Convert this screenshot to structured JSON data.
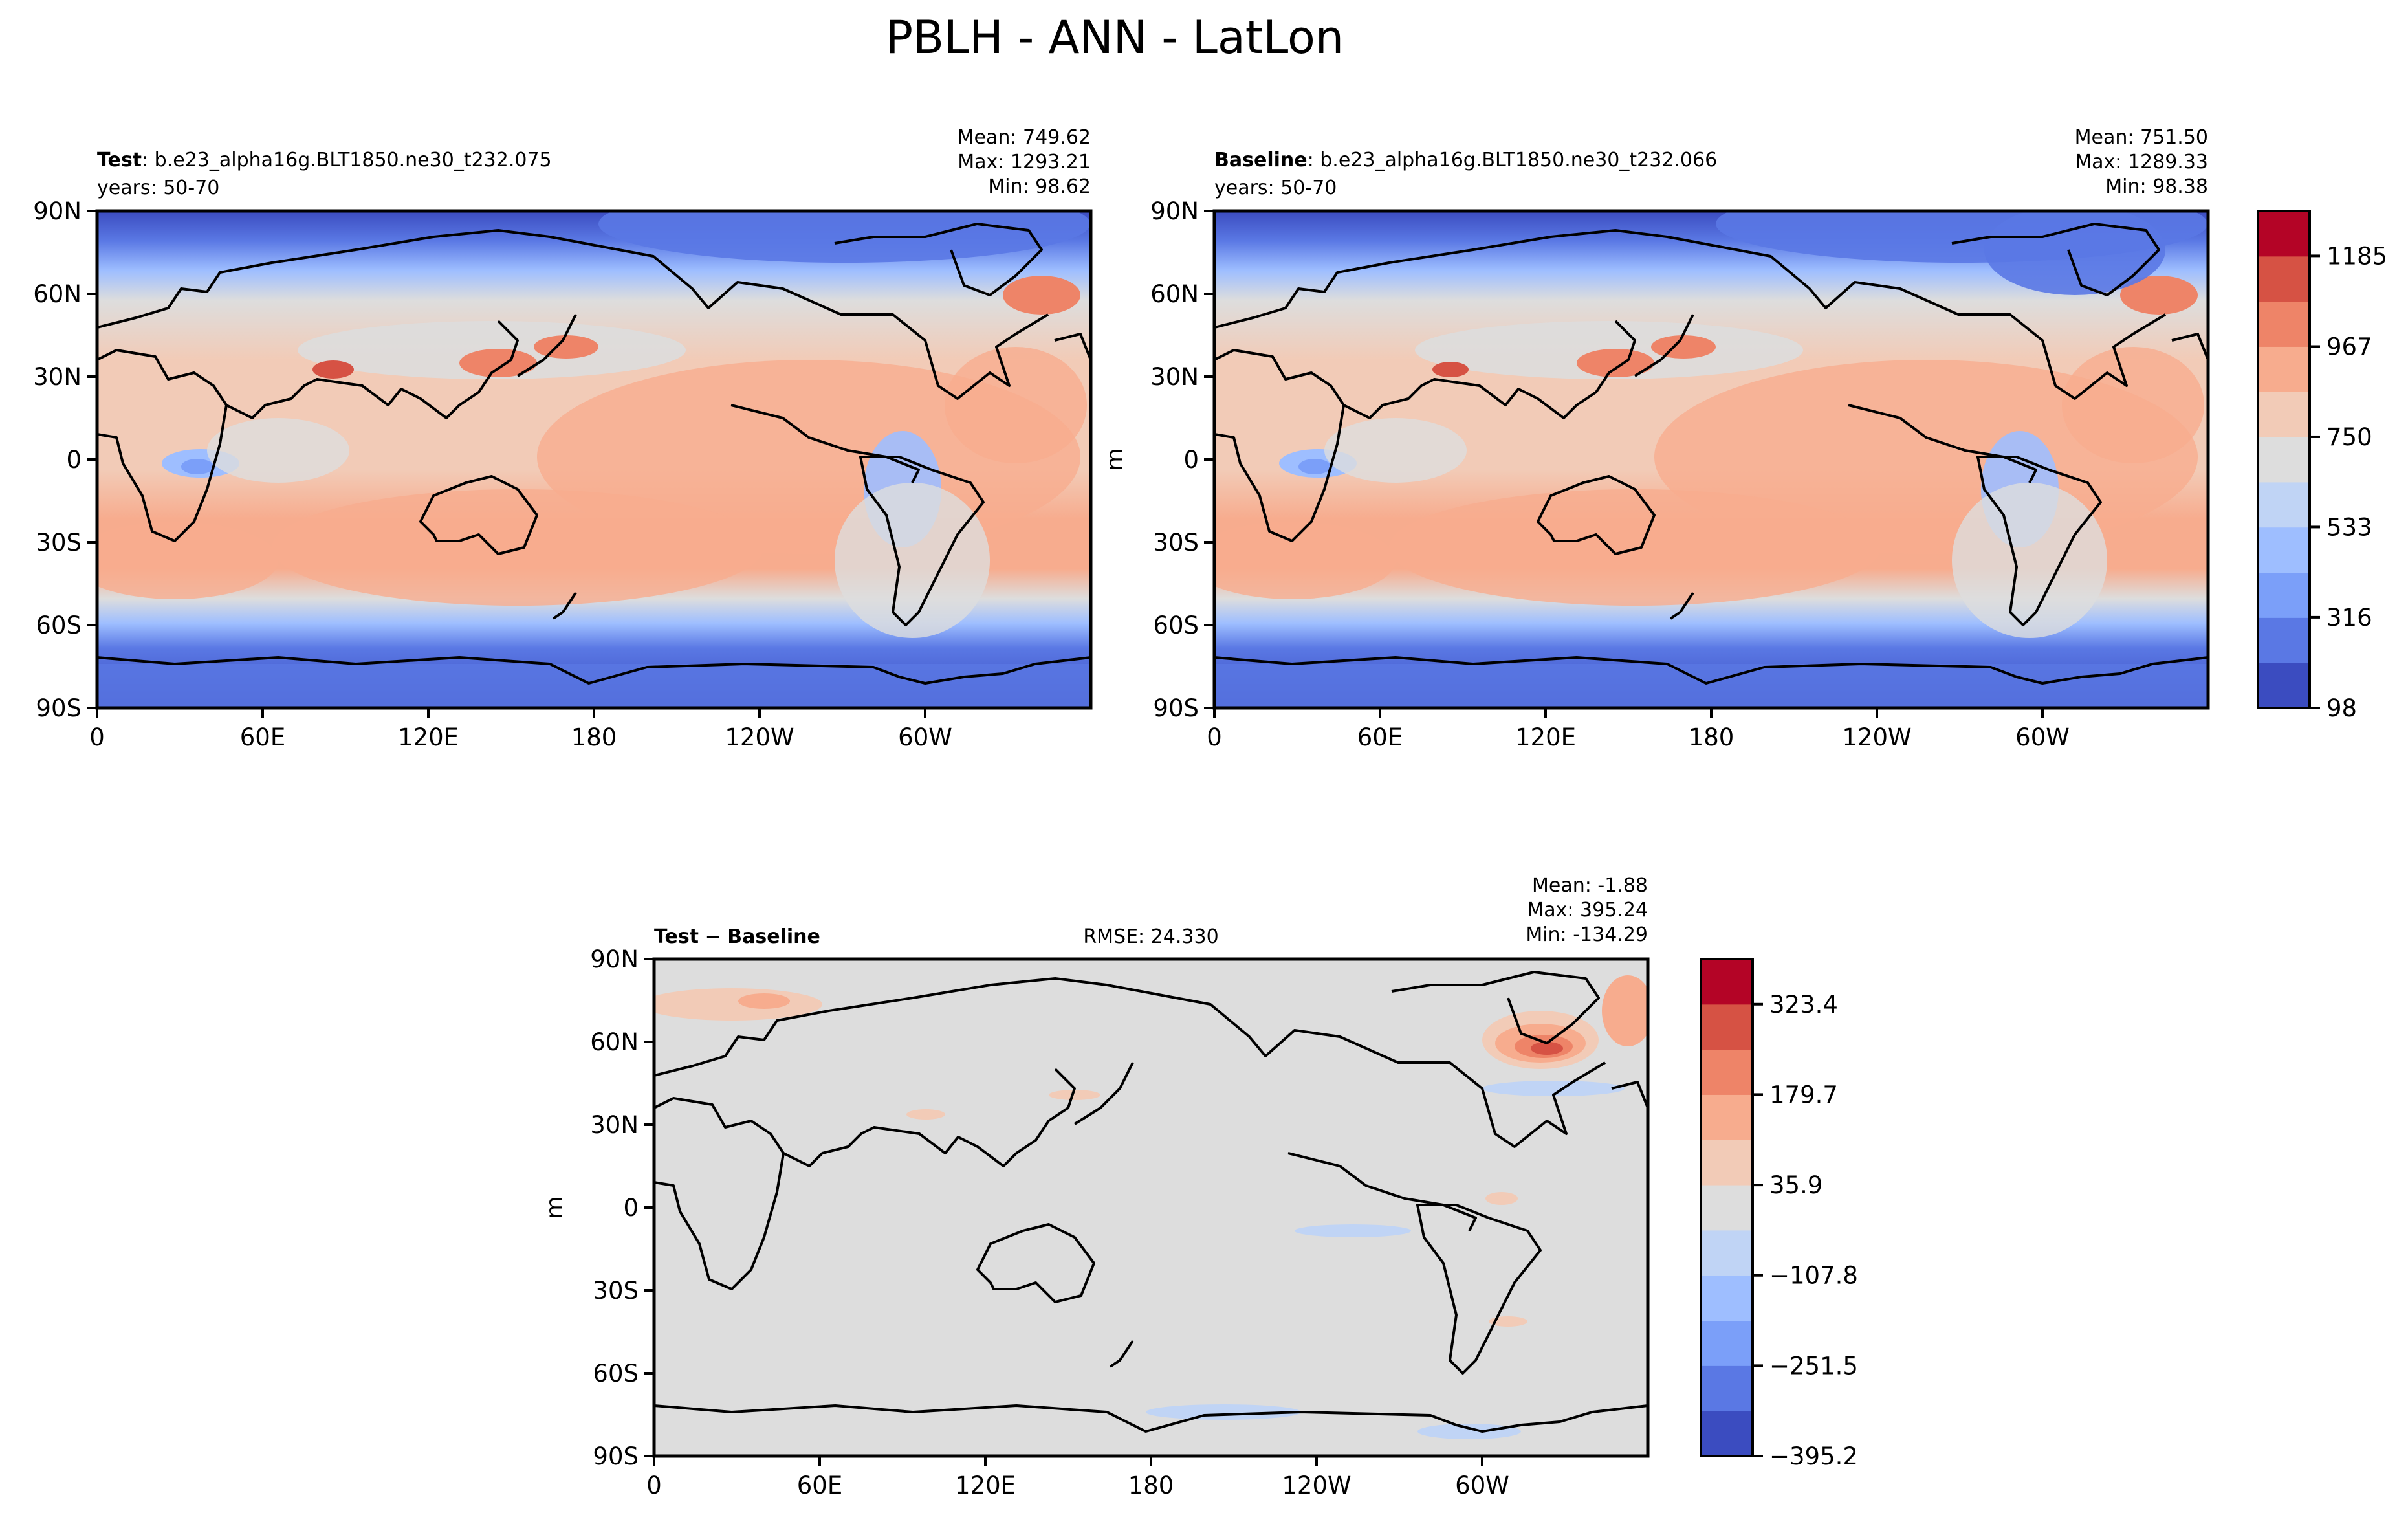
{
  "figure": {
    "title": "PBLH - ANN - LatLon"
  },
  "chart_data": [
    {
      "type": "heatmap",
      "panel": "test",
      "label_bold": "Test",
      "label_rest": ": b.e23_alpha16g.BLT1850.ne30_t232.075",
      "years": "years: 50-70",
      "stats": [
        "Mean: 749.62",
        "Max: 1293.21",
        "Min: 98.62"
      ],
      "xlabel": "",
      "ylabel": "",
      "x_ticks": [
        "0",
        "60E",
        "120E",
        "180",
        "120W",
        "60W"
      ],
      "y_ticks": [
        "90N",
        "60N",
        "30N",
        "0",
        "30S",
        "60S",
        "90S"
      ],
      "xlim": [
        0,
        360
      ],
      "ylim": [
        -90,
        90
      ],
      "colormap": "coolwarm",
      "levels_min": 98.62,
      "levels_max": 1293.21
    },
    {
      "type": "heatmap",
      "panel": "baseline",
      "label_bold": "Baseline",
      "label_rest": ": b.e23_alpha16g.BLT1850.ne30_t232.066",
      "years": "years: 50-70",
      "stats": [
        "Mean: 751.50",
        "Max: 1289.33",
        "Min: 98.38"
      ],
      "xlabel": "",
      "ylabel": "m",
      "x_ticks": [
        "0",
        "60E",
        "120E",
        "180",
        "120W",
        "60W"
      ],
      "y_ticks": [
        "90N",
        "60N",
        "30N",
        "0",
        "30S",
        "60S",
        "90S"
      ],
      "xlim": [
        0,
        360
      ],
      "ylim": [
        -90,
        90
      ],
      "colormap": "coolwarm",
      "colorbar_ticks": [
        "1185",
        "967",
        "750",
        "533",
        "316",
        "98"
      ],
      "colorbar_range": [
        98,
        1293
      ]
    },
    {
      "type": "heatmap",
      "panel": "difference",
      "label_bold_a": "Test",
      "label_sep": " − ",
      "label_bold_b": "Baseline",
      "rmse": "RMSE: 24.330",
      "stats": [
        "Mean: -1.88",
        "Max: 395.24",
        "Min: -134.29"
      ],
      "xlabel": "",
      "ylabel": "m",
      "x_ticks": [
        "0",
        "60E",
        "120E",
        "180",
        "120W",
        "60W"
      ],
      "y_ticks": [
        "90N",
        "60N",
        "30N",
        "0",
        "30S",
        "60S",
        "90S"
      ],
      "xlim": [
        0,
        360
      ],
      "ylim": [
        -90,
        90
      ],
      "colormap": "coolwarm",
      "colorbar_ticks": [
        "323.4",
        "179.7",
        "35.9",
        "−107.8",
        "−251.5",
        "−395.2"
      ],
      "colorbar_range": [
        -395.2,
        395.2
      ]
    }
  ],
  "colors": {
    "colorbar_levels": [
      "#3b4cc0",
      "#5a78e4",
      "#7b9ff9",
      "#9ebeff",
      "#c0d4f5",
      "#dddddd",
      "#f2cbb7",
      "#f7ac8e",
      "#ee8468",
      "#d65244",
      "#b40426"
    ],
    "land_outline": "#000000",
    "frame": "#000000",
    "diff_background": "#dddddd"
  }
}
